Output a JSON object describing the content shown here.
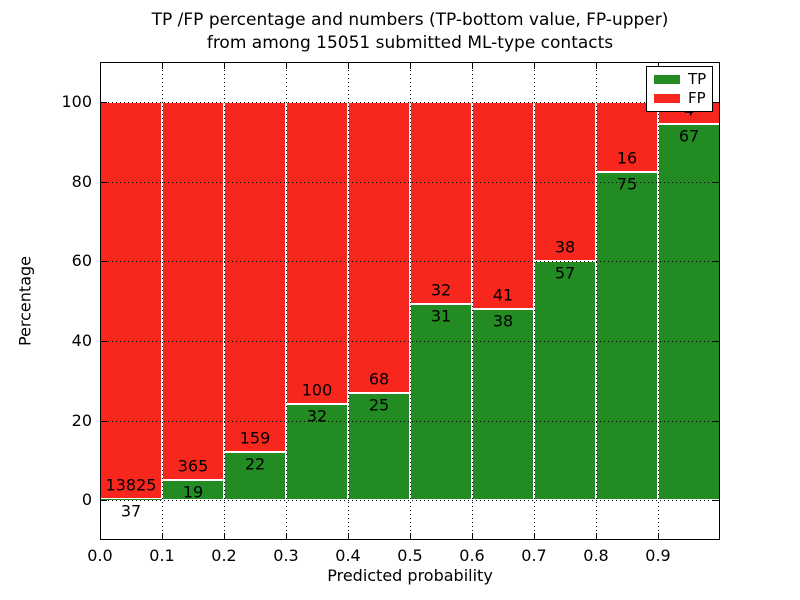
{
  "title": {
    "line1": "TP /FP percentage and numbers (TP-bottom value, FP-upper)",
    "line2": "from among 15051 submitted ML-type contacts"
  },
  "chart_data": {
    "type": "bar",
    "stacked": true,
    "title": "TP /FP percentage and numbers (TP-bottom value, FP-upper) from among 15051 submitted ML-type contacts",
    "xlabel": "Predicted probability",
    "ylabel": "Percentage",
    "xlim": [
      0.0,
      1.0
    ],
    "ylim": [
      -10,
      110
    ],
    "x_ticks": [
      0.0,
      0.1,
      0.2,
      0.3,
      0.4,
      0.5,
      0.6,
      0.7,
      0.8,
      0.9
    ],
    "x_tick_labels": [
      "0.0",
      "0.1",
      "0.2",
      "0.3",
      "0.4",
      "0.5",
      "0.6",
      "0.7",
      "0.8",
      "0.9"
    ],
    "y_ticks": [
      0,
      20,
      40,
      60,
      80,
      100
    ],
    "y_tick_labels": [
      "0",
      "20",
      "40",
      "60",
      "80",
      "100"
    ],
    "grid": {
      "style": "dotted",
      "color": "#000000"
    },
    "total_contacts": 15051,
    "bins": [
      {
        "range": [
          0.0,
          0.1
        ],
        "tp_count": 37,
        "fp_count": 13825,
        "tp_pct": 0.27,
        "fp_pct": 99.73
      },
      {
        "range": [
          0.1,
          0.2
        ],
        "tp_count": 19,
        "fp_count": 365,
        "tp_pct": 4.95,
        "fp_pct": 95.05
      },
      {
        "range": [
          0.2,
          0.3
        ],
        "tp_count": 22,
        "fp_count": 159,
        "tp_pct": 12.15,
        "fp_pct": 87.85
      },
      {
        "range": [
          0.3,
          0.4
        ],
        "tp_count": 32,
        "fp_count": 100,
        "tp_pct": 24.24,
        "fp_pct": 75.76
      },
      {
        "range": [
          0.4,
          0.5
        ],
        "tp_count": 25,
        "fp_count": 68,
        "tp_pct": 26.88,
        "fp_pct": 73.12
      },
      {
        "range": [
          0.5,
          0.6
        ],
        "tp_count": 31,
        "fp_count": 32,
        "tp_pct": 49.21,
        "fp_pct": 50.79
      },
      {
        "range": [
          0.6,
          0.7
        ],
        "tp_count": 38,
        "fp_count": 41,
        "tp_pct": 48.1,
        "fp_pct": 51.9
      },
      {
        "range": [
          0.7,
          0.8
        ],
        "tp_count": 57,
        "fp_count": 38,
        "tp_pct": 60.0,
        "fp_pct": 40.0
      },
      {
        "range": [
          0.8,
          0.9
        ],
        "tp_count": 75,
        "fp_count": 16,
        "tp_pct": 82.42,
        "fp_pct": 17.58
      },
      {
        "range": [
          0.9,
          1.0
        ],
        "tp_count": 67,
        "fp_count": 4,
        "tp_pct": 94.37,
        "fp_pct": 5.63,
        "fp_label_obscured_by_legend": true
      }
    ],
    "colors": {
      "tp": "#228b22",
      "fp": "#f8271d",
      "bar_edge": "#ffffff",
      "frame": "#000000",
      "background": "#ffffff",
      "text": "#000000"
    },
    "legend": {
      "position": "upper right",
      "entries": [
        {
          "label": "TP",
          "color": "#228b22"
        },
        {
          "label": "FP",
          "color": "#f8271d"
        }
      ]
    }
  }
}
